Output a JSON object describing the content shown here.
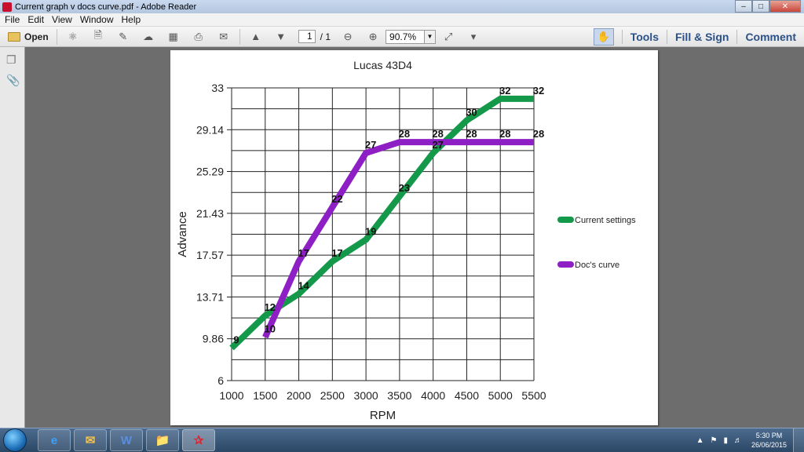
{
  "window": {
    "title": "Current graph v docs curve.pdf - Adobe Reader"
  },
  "menu": {
    "items": [
      "File",
      "Edit",
      "View",
      "Window",
      "Help"
    ]
  },
  "toolbar": {
    "open_label": "Open",
    "page_current": "1",
    "page_separator": "/ 1",
    "zoom": "90.7%",
    "tools_label": "Tools",
    "fill_sign_label": "Fill & Sign",
    "comment_label": "Comment"
  },
  "taskbar": {
    "time": "5:30 PM",
    "date": "26/06/2015"
  },
  "chart_data": {
    "type": "line",
    "title": "Lucas 43D4",
    "xlabel": "RPM",
    "ylabel": "Advance",
    "x": [
      1000,
      1500,
      2000,
      2500,
      3000,
      3500,
      4000,
      4500,
      5000,
      5500
    ],
    "ylim": [
      6,
      33
    ],
    "yticks": [
      "6",
      "9.86",
      "13.71",
      "17.57",
      "21.43",
      "25.29",
      "29.14",
      "33"
    ],
    "grid": true,
    "legend_position": "right",
    "series": [
      {
        "name": "Current settings",
        "color": "#14994a",
        "x": [
          1000,
          1500,
          2000,
          2500,
          3000,
          3500,
          4000,
          4500,
          5000,
          5500
        ],
        "values": [
          9,
          12,
          14,
          17,
          19,
          23,
          27,
          30,
          32,
          32
        ],
        "labels": [
          "9",
          "12",
          "14",
          "17",
          "19",
          "23",
          "27",
          "30",
          "32",
          "32"
        ]
      },
      {
        "name": "Doc's curve",
        "color": "#8d1fc4",
        "x": [
          1500,
          2000,
          2500,
          3000,
          3500,
          4000,
          4500,
          5000,
          5500
        ],
        "values": [
          10,
          17,
          22,
          27,
          28,
          28,
          28,
          28,
          28
        ],
        "labels": [
          "10",
          "17",
          "22",
          "27",
          "28",
          "28",
          "28",
          "28",
          "28"
        ]
      }
    ]
  }
}
